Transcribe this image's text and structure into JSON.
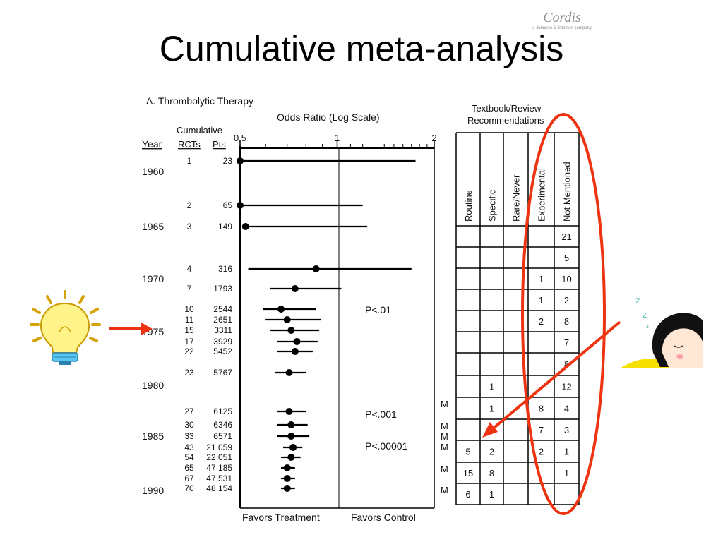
{
  "slide": {
    "title": "Cumulative meta-analysis",
    "logo": {
      "brand": "Cordis",
      "tagline": "a Johnson & Johnson company"
    }
  },
  "figure": {
    "panel_label": "A. Thrombolytic Therapy",
    "axis_title": "Odds Ratio (Log Scale)",
    "col_cumulative": "Cumulative",
    "col_year": "Year",
    "col_rcts": "RCTs",
    "col_pts": "Pts",
    "favors_treatment": "Favors Treatment",
    "favors_control": "Favors Control",
    "textbook_header": [
      "Textbook/Review",
      "Recommendations"
    ],
    "rec_columns": [
      "Routine",
      "Specific",
      "Rare/Never",
      "Experimental",
      "Not Mentioned"
    ],
    "annotation_colors": {
      "circle": "#ee3311",
      "arrow": "#ee3311"
    }
  },
  "chart_data": {
    "type": "forest",
    "x_scale": "log",
    "xlim": [
      0.5,
      2
    ],
    "x_ticks": [
      "0.5",
      "1",
      "2"
    ],
    "reference_line": 1,
    "year_labels": [
      "1960",
      "1965",
      "1970",
      "1975",
      "1980",
      "1985",
      "1990"
    ],
    "rows": [
      {
        "rcts": "1",
        "pts": "23",
        "or": 0.5,
        "lo": 0.5,
        "hi": 1.75
      },
      {
        "rcts": "2",
        "pts": "65",
        "or": 0.5,
        "lo": 0.5,
        "hi": 1.2
      },
      {
        "rcts": "3",
        "pts": "149",
        "or": 0.52,
        "lo": 0.52,
        "hi": 1.24
      },
      {
        "rcts": "4",
        "pts": "316",
        "or": 0.86,
        "lo": 0.53,
        "hi": 1.7
      },
      {
        "rcts": "7",
        "pts": "1793",
        "or": 0.74,
        "lo": 0.62,
        "hi": 1.03
      },
      {
        "rcts": "10",
        "pts": "2544",
        "or": 0.67,
        "lo": 0.59,
        "hi": 0.86
      },
      {
        "rcts": "11",
        "pts": "2651",
        "or": 0.7,
        "lo": 0.6,
        "hi": 0.89
      },
      {
        "rcts": "15",
        "pts": "3311",
        "or": 0.72,
        "lo": 0.62,
        "hi": 0.88
      },
      {
        "rcts": "17",
        "pts": "3929",
        "or": 0.75,
        "lo": 0.65,
        "hi": 0.87
      },
      {
        "rcts": "22",
        "pts": "5452",
        "or": 0.74,
        "lo": 0.65,
        "hi": 0.84
      },
      {
        "rcts": "23",
        "pts": "5767",
        "or": 0.71,
        "lo": 0.64,
        "hi": 0.8
      },
      {
        "rcts": "27",
        "pts": "6125",
        "or": 0.71,
        "lo": 0.65,
        "hi": 0.8
      },
      {
        "rcts": "30",
        "pts": "6346",
        "or": 0.72,
        "lo": 0.65,
        "hi": 0.81
      },
      {
        "rcts": "33",
        "pts": "6571",
        "or": 0.72,
        "lo": 0.65,
        "hi": 0.82
      },
      {
        "rcts": "43",
        "pts": "21 059",
        "or": 0.73,
        "lo": 0.68,
        "hi": 0.78
      },
      {
        "rcts": "54",
        "pts": "22 051",
        "or": 0.72,
        "lo": 0.67,
        "hi": 0.77
      },
      {
        "rcts": "65",
        "pts": "47 185",
        "or": 0.7,
        "lo": 0.67,
        "hi": 0.74
      },
      {
        "rcts": "67",
        "pts": "47 531",
        "or": 0.7,
        "lo": 0.67,
        "hi": 0.74
      },
      {
        "rcts": "70",
        "pts": "48 154",
        "or": 0.7,
        "lo": 0.67,
        "hi": 0.74
      }
    ],
    "pvalues": [
      "P<.01",
      "P<.001",
      "P<.00001"
    ],
    "recommendations": [
      {
        "marker": "",
        "routine": "",
        "specific": "",
        "rare_never": "",
        "experimental": "",
        "not_mentioned": "21"
      },
      {
        "marker": "",
        "routine": "",
        "specific": "",
        "rare_never": "",
        "experimental": "",
        "not_mentioned": "5"
      },
      {
        "marker": "",
        "routine": "",
        "specific": "",
        "rare_never": "",
        "experimental": "1",
        "not_mentioned": "10"
      },
      {
        "marker": "",
        "routine": "",
        "specific": "",
        "rare_never": "",
        "experimental": "1",
        "not_mentioned": "2"
      },
      {
        "marker": "",
        "routine": "",
        "specific": "",
        "rare_never": "",
        "experimental": "2",
        "not_mentioned": "8"
      },
      {
        "marker": "",
        "routine": "",
        "specific": "",
        "rare_never": "",
        "experimental": "",
        "not_mentioned": "7"
      },
      {
        "marker": "",
        "routine": "",
        "specific": "",
        "rare_never": "",
        "experimental": "",
        "not_mentioned": "8"
      },
      {
        "marker": "",
        "routine": "",
        "specific": "1",
        "rare_never": "",
        "experimental": "",
        "not_mentioned": "12"
      },
      {
        "marker": "M",
        "routine": "",
        "specific": "1",
        "rare_never": "",
        "experimental": "8",
        "not_mentioned": "4"
      },
      {
        "marker": "MM",
        "routine": "",
        "specific": "",
        "rare_never": "",
        "experimental": "7",
        "not_mentioned": "3"
      },
      {
        "marker": "M",
        "routine": "5",
        "specific": "2",
        "rare_never": "",
        "experimental": "2",
        "not_mentioned": "1"
      },
      {
        "marker": "M",
        "routine": "15",
        "specific": "8",
        "rare_never": "",
        "experimental": "",
        "not_mentioned": "1"
      },
      {
        "marker": "M",
        "routine": "6",
        "specific": "1",
        "rare_never": "",
        "experimental": "",
        "not_mentioned": ""
      }
    ]
  }
}
